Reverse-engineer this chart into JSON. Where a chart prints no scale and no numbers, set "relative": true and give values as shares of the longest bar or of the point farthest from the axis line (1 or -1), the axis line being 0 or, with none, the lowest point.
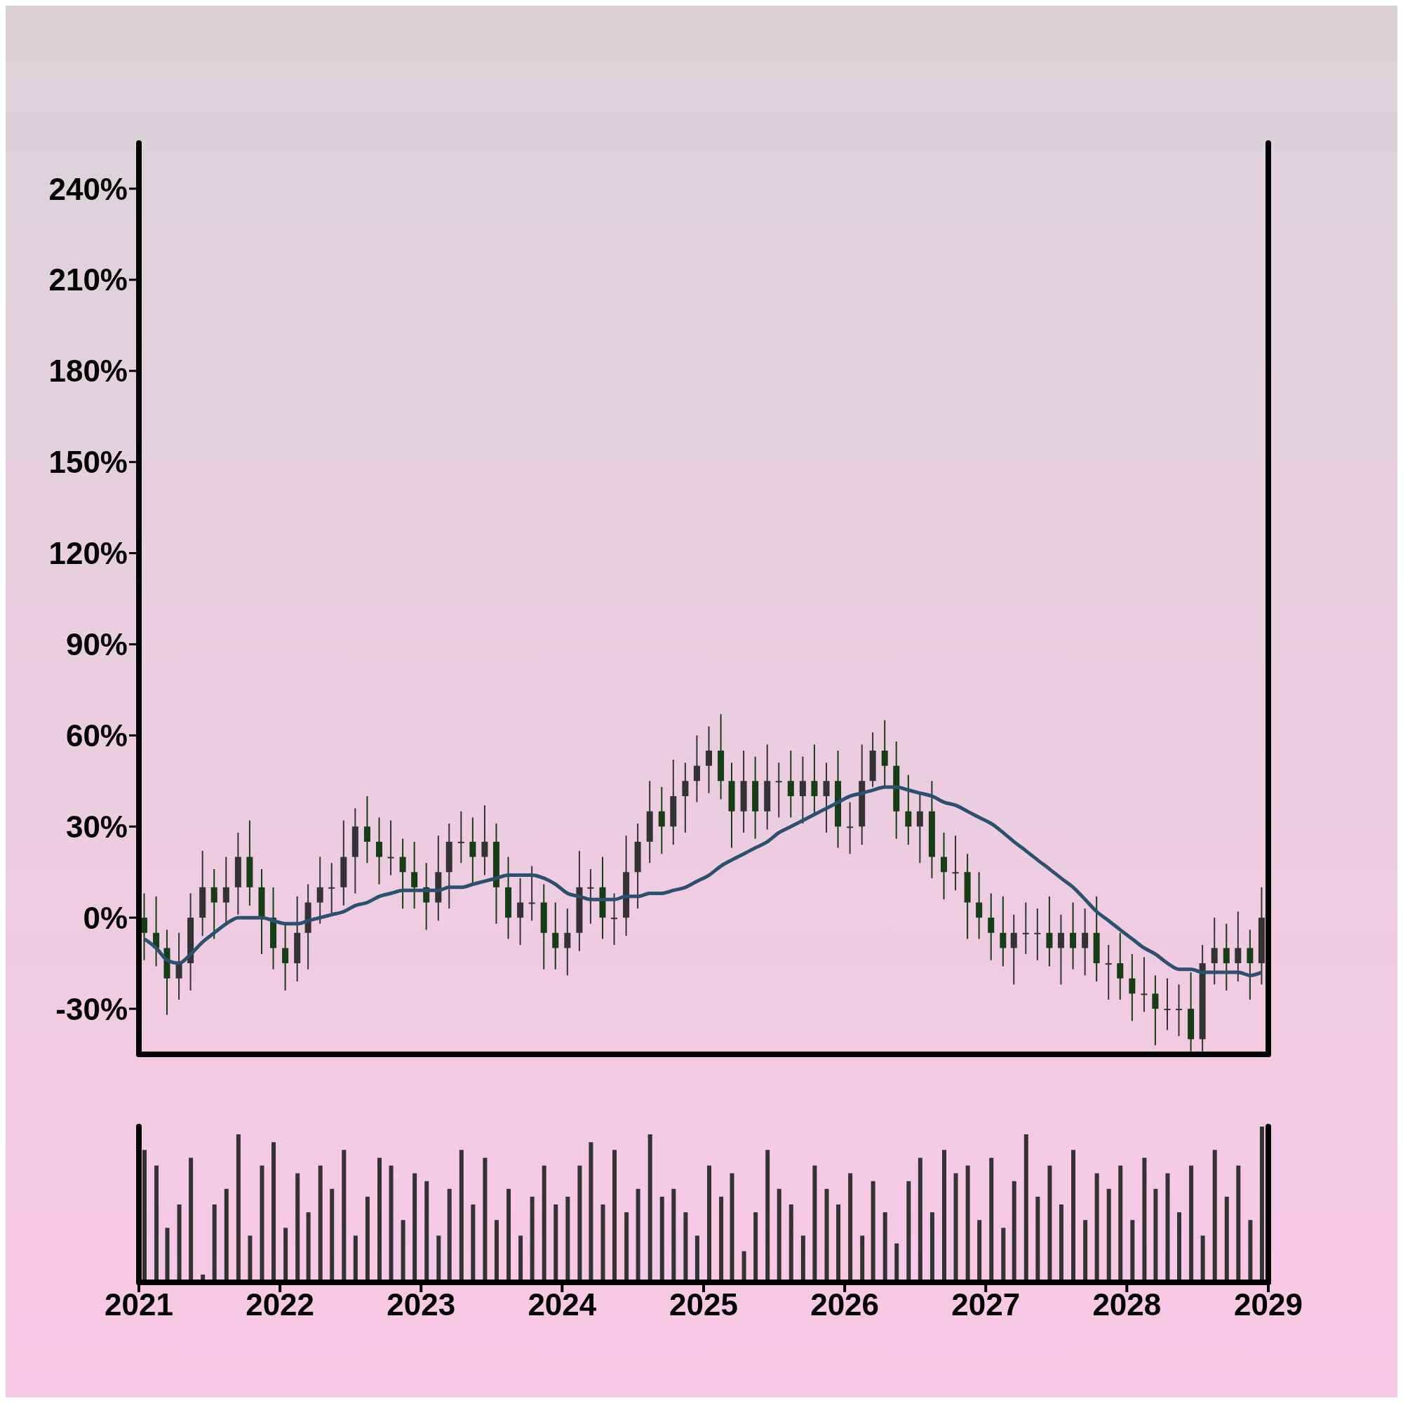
{
  "chart_data": [
    {
      "type": "candlestick",
      "x": [
        "2021-01-15",
        "2021-02-15",
        "2021-03-15",
        "2021-04-15",
        "2021-05-15",
        "2021-06-15",
        "2021-07-15",
        "2021-08-15",
        "2021-09-15",
        "2021-10-15",
        "2021-11-15",
        "2021-12-15",
        "2022-01-15",
        "2022-02-15",
        "2022-03-15",
        "2022-04-15",
        "2022-05-15",
        "2022-06-15",
        "2022-07-15",
        "2022-08-15",
        "2022-09-15",
        "2022-10-15",
        "2022-11-15",
        "2022-12-15",
        "2023-01-15",
        "2023-02-15",
        "2023-03-15",
        "2023-04-15",
        "2023-05-15",
        "2023-06-15",
        "2023-07-15",
        "2023-08-15",
        "2023-09-15",
        "2023-10-15",
        "2023-11-15",
        "2023-12-15",
        "2024-01-15",
        "2024-02-15",
        "2024-03-15",
        "2024-04-15",
        "2024-05-15",
        "2024-06-15",
        "2024-07-15",
        "2024-08-15",
        "2024-09-15",
        "2024-10-15",
        "2024-11-15",
        "2024-12-15",
        "2025-01-15",
        "2025-02-15",
        "2025-03-15",
        "2025-04-15",
        "2025-05-15",
        "2025-06-15",
        "2025-07-15",
        "2025-08-15",
        "2025-09-15",
        "2025-10-15",
        "2025-11-15",
        "2025-12-15",
        "2026-01-15",
        "2026-02-15",
        "2026-03-15",
        "2026-04-15",
        "2026-05-15",
        "2026-06-15",
        "2026-07-15",
        "2026-08-15",
        "2026-09-15",
        "2026-10-15",
        "2026-11-15",
        "2026-12-15",
        "2027-01-15",
        "2027-02-15",
        "2027-03-15",
        "2027-04-15",
        "2027-05-15",
        "2027-06-15",
        "2027-07-15",
        "2027-08-15",
        "2027-09-15",
        "2027-10-15",
        "2027-11-15",
        "2027-12-15",
        "2028-01-15",
        "2028-02-15",
        "2028-03-15",
        "2028-04-15",
        "2028-05-15",
        "2028-06-15",
        "2028-07-15",
        "2028-08-15",
        "2028-09-15",
        "2028-10-15",
        "2028-11-15",
        "2028-12-15"
      ],
      "ohlc": [
        [
          0,
          8,
          -14,
          -5
        ],
        [
          -5,
          7,
          -16,
          -10
        ],
        [
          -10,
          -4,
          -32,
          -20
        ],
        [
          -20,
          -5,
          -27,
          -15
        ],
        [
          -15,
          8,
          -24,
          0
        ],
        [
          0,
          22,
          -6,
          10
        ],
        [
          10,
          16,
          -7,
          5
        ],
        [
          5,
          20,
          -2,
          10
        ],
        [
          10,
          28,
          1,
          20
        ],
        [
          20,
          32,
          4,
          10
        ],
        [
          10,
          16,
          -12,
          0
        ],
        [
          0,
          10,
          -17,
          -10
        ],
        [
          -10,
          -2,
          -24,
          -15
        ],
        [
          -15,
          7,
          -21,
          -5
        ],
        [
          -5,
          11,
          -17,
          5
        ],
        [
          5,
          20,
          -2,
          10
        ],
        [
          10,
          18,
          1,
          10
        ],
        [
          10,
          32,
          4,
          20
        ],
        [
          20,
          36,
          8,
          30
        ],
        [
          30,
          40,
          18,
          25
        ],
        [
          25,
          33,
          11,
          20
        ],
        [
          20,
          32,
          14,
          20
        ],
        [
          20,
          26,
          3,
          15
        ],
        [
          15,
          25,
          3,
          10
        ],
        [
          10,
          18,
          -4,
          5
        ],
        [
          5,
          27,
          -1,
          15
        ],
        [
          15,
          31,
          3,
          25
        ],
        [
          25,
          35,
          18,
          25
        ],
        [
          25,
          33,
          11,
          20
        ],
        [
          20,
          37,
          14,
          25
        ],
        [
          25,
          31,
          -2,
          10
        ],
        [
          10,
          20,
          -7,
          0
        ],
        [
          0,
          13,
          -9,
          5
        ],
        [
          5,
          17,
          -1,
          5
        ],
        [
          5,
          11,
          -17,
          -5
        ],
        [
          -5,
          5,
          -17,
          -10
        ],
        [
          -10,
          3,
          -19,
          -5
        ],
        [
          -5,
          22,
          -11,
          10
        ],
        [
          10,
          16,
          -2,
          10
        ],
        [
          10,
          20,
          -7,
          0
        ],
        [
          0,
          8,
          -9,
          0
        ],
        [
          0,
          27,
          -6,
          15
        ],
        [
          15,
          31,
          3,
          25
        ],
        [
          25,
          45,
          18,
          35
        ],
        [
          35,
          43,
          21,
          30
        ],
        [
          30,
          52,
          24,
          40
        ],
        [
          40,
          51,
          28,
          45
        ],
        [
          45,
          60,
          38,
          50
        ],
        [
          50,
          63,
          41,
          55
        ],
        [
          55,
          67,
          39,
          45
        ],
        [
          45,
          51,
          23,
          35
        ],
        [
          35,
          55,
          28,
          45
        ],
        [
          45,
          53,
          26,
          35
        ],
        [
          35,
          57,
          29,
          45
        ],
        [
          45,
          51,
          33,
          45
        ],
        [
          45,
          55,
          33,
          40
        ],
        [
          40,
          53,
          31,
          45
        ],
        [
          45,
          57,
          34,
          40
        ],
        [
          40,
          51,
          28,
          45
        ],
        [
          45,
          55,
          23,
          30
        ],
        [
          30,
          38,
          21,
          30
        ],
        [
          30,
          57,
          24,
          45
        ],
        [
          45,
          61,
          43,
          55
        ],
        [
          55,
          65,
          43,
          50
        ],
        [
          50,
          58,
          26,
          35
        ],
        [
          35,
          47,
          24,
          30
        ],
        [
          30,
          41,
          18,
          35
        ],
        [
          35,
          45,
          13,
          20
        ],
        [
          20,
          28,
          6,
          15
        ],
        [
          15,
          27,
          9,
          15
        ],
        [
          15,
          21,
          -7,
          5
        ],
        [
          5,
          15,
          -7,
          0
        ],
        [
          0,
          8,
          -14,
          -5
        ],
        [
          -5,
          7,
          -16,
          -10
        ],
        [
          -10,
          1,
          -22,
          -5
        ],
        [
          -5,
          5,
          -12,
          -5
        ],
        [
          -5,
          3,
          -14,
          -5
        ],
        [
          -5,
          7,
          -16,
          -10
        ],
        [
          -10,
          1,
          -22,
          -5
        ],
        [
          -5,
          5,
          -17,
          -10
        ],
        [
          -10,
          3,
          -19,
          -5
        ],
        [
          -5,
          7,
          -21,
          -15
        ],
        [
          -15,
          -9,
          -27,
          -15
        ],
        [
          -15,
          -5,
          -27,
          -20
        ],
        [
          -20,
          -12,
          -34,
          -25
        ],
        [
          -25,
          -13,
          -31,
          -25
        ],
        [
          -25,
          -19,
          -42,
          -30
        ],
        [
          -30,
          -20,
          -37,
          -30
        ],
        [
          -30,
          -22,
          -39,
          -30
        ],
        [
          -30,
          -18,
          -44,
          -40
        ],
        [
          -40,
          -9,
          -44,
          -15
        ],
        [
          -15,
          0,
          -22,
          -10
        ],
        [
          -10,
          -2,
          -24,
          -15
        ],
        [
          -15,
          2,
          -21,
          -10
        ],
        [
          -10,
          -4,
          -27,
          -15
        ],
        [
          -15,
          10,
          -22,
          0
        ]
      ],
      "colors": [
        "#163d14",
        "#163d14",
        "#163d14",
        "#333333",
        "#333333",
        "#333333",
        "#163d14",
        "#333333",
        "#333333",
        "#163d14",
        "#163d14",
        "#163d14",
        "#163d14",
        "#333333",
        "#333333",
        "#333333",
        "#333333",
        "#333333",
        "#333333",
        "#163d14",
        "#163d14",
        "#333333",
        "#163d14",
        "#163d14",
        "#163d14",
        "#333333",
        "#333333",
        "#333333",
        "#163d14",
        "#333333",
        "#163d14",
        "#163d14",
        "#333333",
        "#333333",
        "#163d14",
        "#163d14",
        "#333333",
        "#333333",
        "#333333",
        "#163d14",
        "#333333",
        "#333333",
        "#333333",
        "#333333",
        "#163d14",
        "#333333",
        "#333333",
        "#333333",
        "#333333",
        "#163d14",
        "#163d14",
        "#333333",
        "#163d14",
        "#333333",
        "#333333",
        "#163d14",
        "#333333",
        "#163d14",
        "#333333",
        "#163d14",
        "#333333",
        "#333333",
        "#333333",
        "#163d14",
        "#163d14",
        "#163d14",
        "#333333",
        "#163d14",
        "#163d14",
        "#333333",
        "#163d14",
        "#163d14",
        "#163d14",
        "#163d14",
        "#333333",
        "#333333",
        "#333333",
        "#163d14",
        "#333333",
        "#163d14",
        "#333333",
        "#163d14",
        "#333333",
        "#163d14",
        "#163d14",
        "#333333",
        "#163d14",
        "#333333",
        "#333333",
        "#163d14",
        "#333333",
        "#333333",
        "#163d14",
        "#333333",
        "#163d14",
        "#333333"
      ],
      "series": [
        {
          "type": "line",
          "color": "#2b5070",
          "values": [
            -7,
            -10,
            -14,
            -15,
            -12,
            -8,
            -5,
            -2,
            0,
            0,
            0,
            -1,
            -2,
            -2,
            -1,
            0,
            1,
            2,
            4,
            5,
            7,
            8,
            9,
            9,
            9,
            9,
            10,
            10,
            11,
            12,
            13,
            14,
            14,
            14,
            13,
            11,
            8,
            7,
            6,
            6,
            6,
            7,
            7,
            8,
            8,
            9,
            10,
            12,
            14,
            17,
            19,
            21,
            23,
            25,
            28,
            30,
            32,
            34,
            36,
            38,
            40,
            41,
            42,
            43,
            43,
            42,
            41,
            40,
            38,
            37,
            35,
            33,
            31,
            28,
            25,
            22,
            19,
            16,
            13,
            10,
            6,
            2,
            -1,
            -4,
            -7,
            -10,
            -12,
            -15,
            -17,
            -17,
            -18,
            -18,
            -18,
            -18,
            -19,
            -18
          ]
        }
      ],
      "xlim": [
        "2021-01-01",
        "2029-01-01"
      ],
      "xticks": [
        "2021",
        "2022",
        "2023",
        "2024",
        "2025",
        "2026",
        "2027",
        "2028",
        "2029"
      ],
      "ylim": [
        -45,
        255
      ],
      "yticks": [
        {
          "value": -30,
          "label": "-30%"
        },
        {
          "value": 0,
          "label": "0%"
        },
        {
          "value": 30,
          "label": "30%"
        },
        {
          "value": 60,
          "label": "60%"
        },
        {
          "value": 90,
          "label": "90%"
        },
        {
          "value": 120,
          "label": "120%"
        },
        {
          "value": 150,
          "label": "150%"
        },
        {
          "value": 180,
          "label": "180%"
        },
        {
          "value": 210,
          "label": "210%"
        },
        {
          "value": 240,
          "label": "240%"
        }
      ],
      "tick_labels": "y"
    },
    {
      "type": "bar",
      "relative": true,
      "color": "#333333",
      "x": [
        "2021-01-15",
        "2021-02-15",
        "2021-03-15",
        "2021-04-15",
        "2021-05-15",
        "2021-06-15",
        "2021-07-15",
        "2021-08-15",
        "2021-09-15",
        "2021-10-15",
        "2021-11-15",
        "2021-12-15",
        "2022-01-15",
        "2022-02-15",
        "2022-03-15",
        "2022-04-15",
        "2022-05-15",
        "2022-06-15",
        "2022-07-15",
        "2022-08-15",
        "2022-09-15",
        "2022-10-15",
        "2022-11-15",
        "2022-12-15",
        "2023-01-15",
        "2023-02-15",
        "2023-03-15",
        "2023-04-15",
        "2023-05-15",
        "2023-06-15",
        "2023-07-15",
        "2023-08-15",
        "2023-09-15",
        "2023-10-15",
        "2023-11-15",
        "2023-12-15",
        "2024-01-15",
        "2024-02-15",
        "2024-03-15",
        "2024-04-15",
        "2024-05-15",
        "2024-06-15",
        "2024-07-15",
        "2024-08-15",
        "2024-09-15",
        "2024-10-15",
        "2024-11-15",
        "2024-12-15",
        "2025-01-15",
        "2025-02-15",
        "2025-03-15",
        "2025-04-15",
        "2025-05-15",
        "2025-06-15",
        "2025-07-15",
        "2025-08-15",
        "2025-09-15",
        "2025-10-15",
        "2025-11-15",
        "2025-12-15",
        "2026-01-15",
        "2026-02-15",
        "2026-03-15",
        "2026-04-15",
        "2026-05-15",
        "2026-06-15",
        "2026-07-15",
        "2026-08-15",
        "2026-09-15",
        "2026-10-15",
        "2026-11-15",
        "2026-12-15",
        "2027-01-15",
        "2027-02-15",
        "2027-03-15",
        "2027-04-15",
        "2027-05-15",
        "2027-06-15",
        "2027-07-15",
        "2027-08-15",
        "2027-09-15",
        "2027-10-15",
        "2027-11-15",
        "2027-12-15",
        "2028-01-15",
        "2028-02-15",
        "2028-03-15",
        "2028-04-15",
        "2028-05-15",
        "2028-06-15",
        "2028-07-15",
        "2028-08-15",
        "2028-09-15",
        "2028-10-15",
        "2028-11-15",
        "2028-12-15"
      ],
      "values": [
        0.85,
        0.75,
        0.35,
        0.5,
        0.8,
        0.05,
        0.5,
        0.6,
        0.95,
        0.3,
        0.75,
        0.9,
        0.35,
        0.7,
        0.45,
        0.75,
        0.6,
        0.85,
        0.3,
        0.55,
        0.8,
        0.75,
        0.4,
        0.7,
        0.65,
        0.3,
        0.6,
        0.85,
        0.5,
        0.8,
        0.4,
        0.6,
        0.3,
        0.55,
        0.75,
        0.5,
        0.55,
        0.75,
        0.9,
        0.5,
        0.85,
        0.45,
        0.6,
        0.95,
        0.55,
        0.6,
        0.45,
        0.3,
        0.75,
        0.55,
        0.7,
        0.2,
        0.45,
        0.85,
        0.6,
        0.5,
        0.3,
        0.75,
        0.6,
        0.5,
        0.7,
        0.3,
        0.65,
        0.45,
        0.25,
        0.65,
        0.8,
        0.45,
        0.85,
        0.7,
        0.75,
        0.4,
        0.8,
        0.35,
        0.65,
        0.95,
        0.55,
        0.75,
        0.5,
        0.85,
        0.4,
        0.7,
        0.6,
        0.75,
        0.4,
        0.8,
        0.6,
        0.7,
        0.45,
        0.75,
        0.3,
        0.85,
        0.55,
        0.75,
        0.4,
        1.0
      ],
      "xlim": [
        "2021-01-01",
        "2029-01-01"
      ],
      "xticks": [
        "2021",
        "2022",
        "2023",
        "2024",
        "2025",
        "2026",
        "2027",
        "2028",
        "2029"
      ],
      "tick_labels": "x"
    }
  ]
}
